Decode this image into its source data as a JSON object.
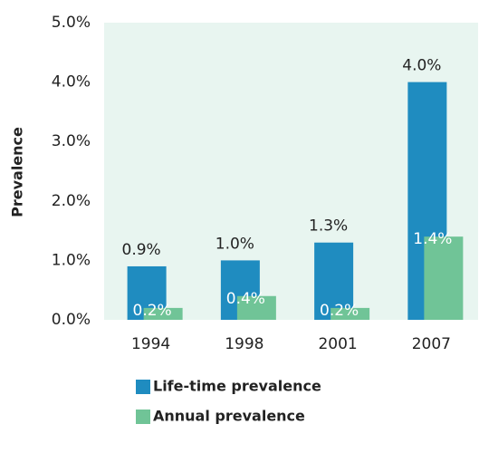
{
  "chart_data": {
    "type": "bar",
    "y_label": "Prevalence",
    "categories": [
      "1994",
      "1998",
      "2001",
      "2007"
    ],
    "series": [
      {
        "name": "Life-time prevalence",
        "color": "#1f8cc0",
        "values": [
          0.9,
          1.0,
          1.3,
          4.0
        ],
        "value_labels": [
          "0.9%",
          "1.0%",
          "1.3%",
          "4.0%"
        ]
      },
      {
        "name": "Annual prevalence",
        "color": "#70c497",
        "values": [
          0.2,
          0.4,
          0.2,
          1.4
        ],
        "value_labels": [
          "0.2%",
          "0.4%",
          "0.2%",
          "1.4%"
        ]
      }
    ],
    "ylim": [
      0,
      5
    ],
    "yticks": [
      {
        "value": 0,
        "label": "0.0%"
      },
      {
        "value": 1,
        "label": "1.0%"
      },
      {
        "value": 2,
        "label": "2.0%"
      },
      {
        "value": 3,
        "label": "3.0%"
      },
      {
        "value": 4,
        "label": "4.0%"
      },
      {
        "value": 5,
        "label": "5.0%"
      }
    ],
    "background": "#e8f5f0"
  }
}
